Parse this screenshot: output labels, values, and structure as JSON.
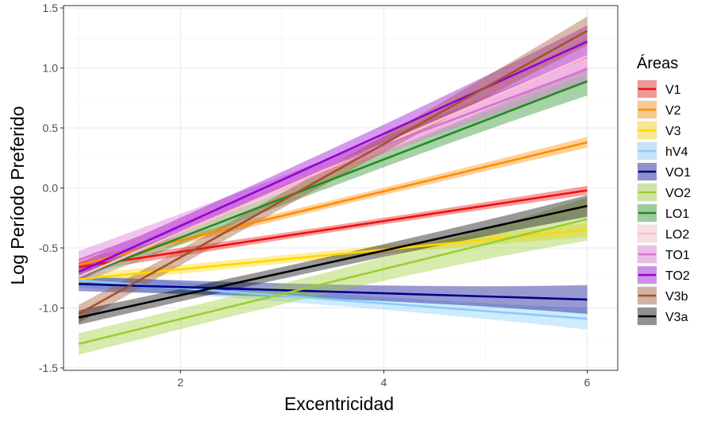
{
  "chart_data": {
    "type": "line",
    "xlabel": "Excentricidad",
    "ylabel": "Log Período Preferido",
    "xlim": [
      0.85,
      6.3
    ],
    "ylim": [
      -1.52,
      1.52
    ],
    "x_ticks": [
      2,
      4,
      6
    ],
    "x_tick_labels": [
      "2",
      "4",
      "6"
    ],
    "y_ticks": [
      -1.5,
      -1.0,
      -0.5,
      0.0,
      0.5,
      1.0,
      1.5
    ],
    "y_tick_labels": [
      "-1.5",
      "-1.0",
      "-0.5",
      "0.0",
      "0.5",
      "1.0",
      "1.5"
    ],
    "grid": true,
    "legend": {
      "title": "Áreas",
      "position": "right"
    },
    "series": [
      {
        "name": "V1",
        "color": "#ee1111",
        "x": [
          1,
          6
        ],
        "y": [
          -0.66,
          -0.02
        ],
        "ci": [
          0.03,
          0.025
        ]
      },
      {
        "name": "V2",
        "color": "#ff8c00",
        "x": [
          1,
          6
        ],
        "y": [
          -0.64,
          0.38
        ],
        "ci": [
          0.03,
          0.03
        ]
      },
      {
        "name": "V3",
        "color": "#ffd700",
        "x": [
          1,
          6
        ],
        "y": [
          -0.76,
          -0.35
        ],
        "ci": [
          0.03,
          0.04
        ]
      },
      {
        "name": "hV4",
        "color": "#87cefa",
        "x": [
          1,
          6
        ],
        "y": [
          -0.77,
          -1.09
        ],
        "ci": [
          0.04,
          0.06
        ]
      },
      {
        "name": "VO1",
        "color": "#00008b",
        "x": [
          1,
          6
        ],
        "y": [
          -0.8,
          -0.93
        ],
        "ci": [
          0.04,
          0.08
        ]
      },
      {
        "name": "VO2",
        "color": "#9acd32",
        "x": [
          1,
          6
        ],
        "y": [
          -1.3,
          -0.26
        ],
        "ci": [
          0.06,
          0.12
        ]
      },
      {
        "name": "LO1",
        "color": "#228b22",
        "x": [
          1,
          6
        ],
        "y": [
          -0.74,
          0.89
        ],
        "ci": [
          0.04,
          0.08
        ]
      },
      {
        "name": "LO2",
        "color": "#ffc0cb",
        "x": [
          1,
          6
        ],
        "y": [
          -0.74,
          1.1
        ],
        "ci": [
          0.05,
          0.1
        ]
      },
      {
        "name": "TO1",
        "color": "#da70d6",
        "x": [
          1,
          6
        ],
        "y": [
          -0.6,
          0.99
        ],
        "ci": [
          0.05,
          0.08
        ]
      },
      {
        "name": "TO2",
        "color": "#9400d3",
        "x": [
          1,
          6
        ],
        "y": [
          -0.7,
          1.22
        ],
        "ci": [
          0.05,
          0.09
        ]
      },
      {
        "name": "V3b",
        "color": "#a0522d",
        "x": [
          1,
          6
        ],
        "y": [
          -1.05,
          1.31
        ],
        "ci": [
          0.05,
          0.08
        ]
      },
      {
        "name": "V3a",
        "color": "#000000",
        "x": [
          1,
          6
        ],
        "y": [
          -1.08,
          -0.15
        ],
        "ci": [
          0.04,
          0.06
        ]
      }
    ]
  }
}
